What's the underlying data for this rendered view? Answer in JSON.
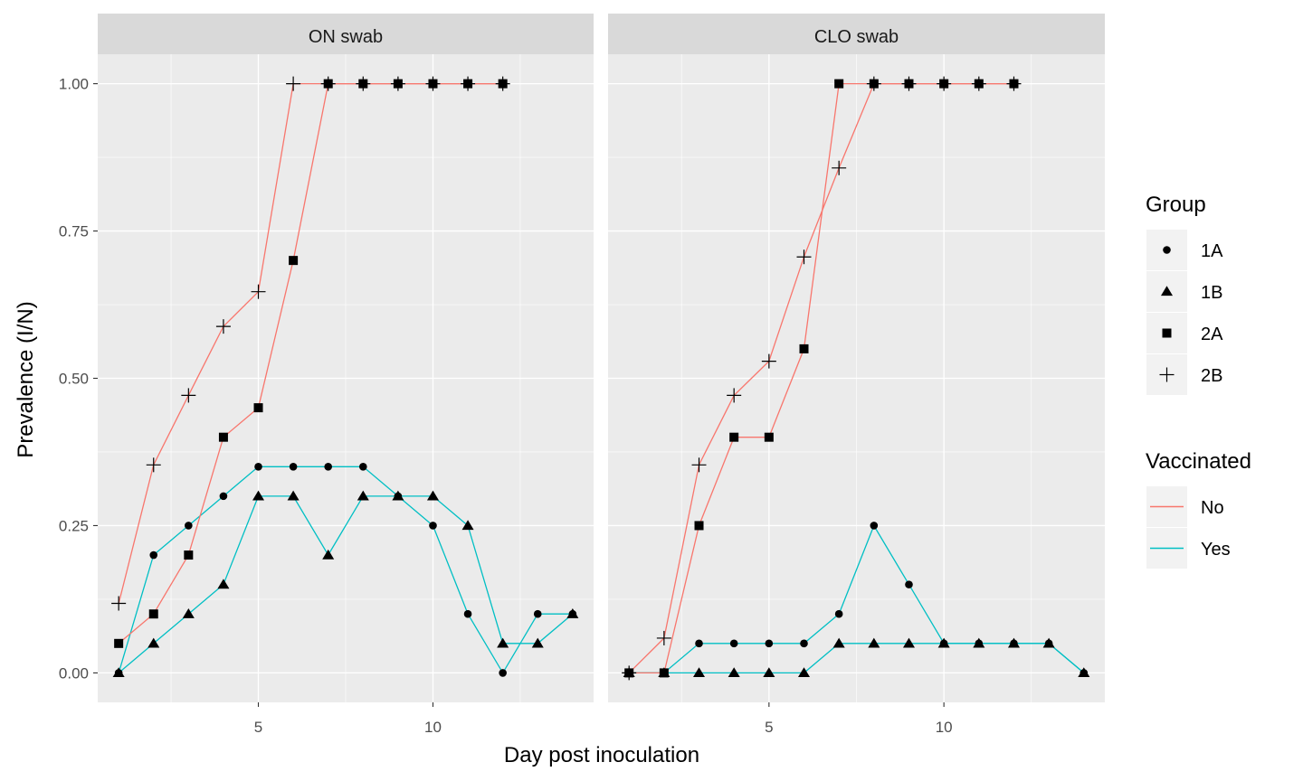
{
  "chart_data": {
    "type": "line",
    "xlabel": "Day post inoculation",
    "ylabel": "Prevalence (I/N)",
    "xlim": [
      0.4,
      14.6
    ],
    "ylim": [
      -0.05,
      1.05
    ],
    "x_ticks": [
      5,
      10
    ],
    "x_tick_labels": [
      "5",
      "10"
    ],
    "y_ticks": [
      0,
      0.25,
      0.5,
      0.75,
      1.0
    ],
    "y_tick_labels": [
      "0.00",
      "0.25",
      "0.50",
      "0.75",
      "1.00"
    ],
    "grid": true,
    "legend_position": "right",
    "colors": {
      "No": "#F8766D",
      "Yes": "#00BFC4"
    },
    "legend": {
      "group_title": "Group",
      "group_items": [
        {
          "label": "1A",
          "shape": "circle"
        },
        {
          "label": "1B",
          "shape": "triangle"
        },
        {
          "label": "2A",
          "shape": "square"
        },
        {
          "label": "2B",
          "shape": "plus"
        }
      ],
      "vaccinated_title": "Vaccinated",
      "vaccinated_items": [
        {
          "label": "No"
        },
        {
          "label": "Yes"
        }
      ]
    },
    "panels": [
      {
        "strip": "ON swab",
        "series": [
          {
            "group": "1A",
            "shape": "circle",
            "vaccinated": "Yes",
            "x": [
              1,
              2,
              3,
              4,
              5,
              6,
              7,
              8,
              9,
              10,
              11,
              12,
              13,
              14
            ],
            "y": [
              0,
              0.2,
              0.25,
              0.3,
              0.35,
              0.35,
              0.35,
              0.35,
              0.3,
              0.25,
              0.1,
              0,
              0.1,
              0.1
            ]
          },
          {
            "group": "1B",
            "shape": "triangle",
            "vaccinated": "Yes",
            "x": [
              1,
              2,
              3,
              4,
              5,
              6,
              7,
              8,
              9,
              10,
              11,
              12,
              13,
              14
            ],
            "y": [
              0,
              0.05,
              0.1,
              0.15,
              0.3,
              0.3,
              0.2,
              0.3,
              0.3,
              0.3,
              0.25,
              0.05,
              0.05,
              0.1
            ]
          },
          {
            "group": "2A",
            "shape": "square",
            "vaccinated": "No",
            "x": [
              1,
              2,
              3,
              4,
              5,
              6,
              7,
              8,
              9,
              10,
              11,
              12
            ],
            "y": [
              0.05,
              0.1,
              0.2,
              0.4,
              0.45,
              0.7,
              1,
              1,
              1,
              1,
              1,
              1
            ]
          },
          {
            "group": "2B",
            "shape": "plus",
            "vaccinated": "No",
            "x": [
              1,
              2,
              3,
              4,
              5,
              6,
              7,
              8,
              9,
              10,
              11,
              12
            ],
            "y": [
              0.118,
              0.353,
              0.471,
              0.588,
              0.647,
              1,
              1,
              1,
              1,
              1,
              1,
              1
            ]
          }
        ]
      },
      {
        "strip": "CLO swab",
        "series": [
          {
            "group": "1A",
            "shape": "circle",
            "vaccinated": "Yes",
            "x": [
              1,
              2,
              3,
              4,
              5,
              6,
              7,
              8,
              9,
              10,
              11,
              12,
              13,
              14
            ],
            "y": [
              0,
              0,
              0.05,
              0.05,
              0.05,
              0.05,
              0.1,
              0.25,
              0.15,
              0.05,
              0.05,
              0.05,
              0.05,
              0
            ]
          },
          {
            "group": "1B",
            "shape": "triangle",
            "vaccinated": "Yes",
            "x": [
              1,
              2,
              3,
              4,
              5,
              6,
              7,
              8,
              9,
              10,
              11,
              12,
              13,
              14
            ],
            "y": [
              0,
              0,
              0,
              0,
              0,
              0,
              0.05,
              0.05,
              0.05,
              0.05,
              0.05,
              0.05,
              0.05,
              0
            ]
          },
          {
            "group": "2A",
            "shape": "square",
            "vaccinated": "No",
            "x": [
              1,
              2,
              3,
              4,
              5,
              6,
              7,
              8,
              9,
              10,
              11,
              12
            ],
            "y": [
              0,
              0,
              0.25,
              0.4,
              0.4,
              0.55,
              1,
              1,
              1,
              1,
              1,
              1
            ]
          },
          {
            "group": "2B",
            "shape": "plus",
            "vaccinated": "No",
            "x": [
              1,
              2,
              3,
              4,
              5,
              6,
              7,
              8,
              9,
              10,
              11,
              12
            ],
            "y": [
              0,
              0.059,
              0.353,
              0.471,
              0.529,
              0.706,
              0.857,
              1,
              1,
              1,
              1,
              1
            ]
          }
        ]
      }
    ]
  }
}
